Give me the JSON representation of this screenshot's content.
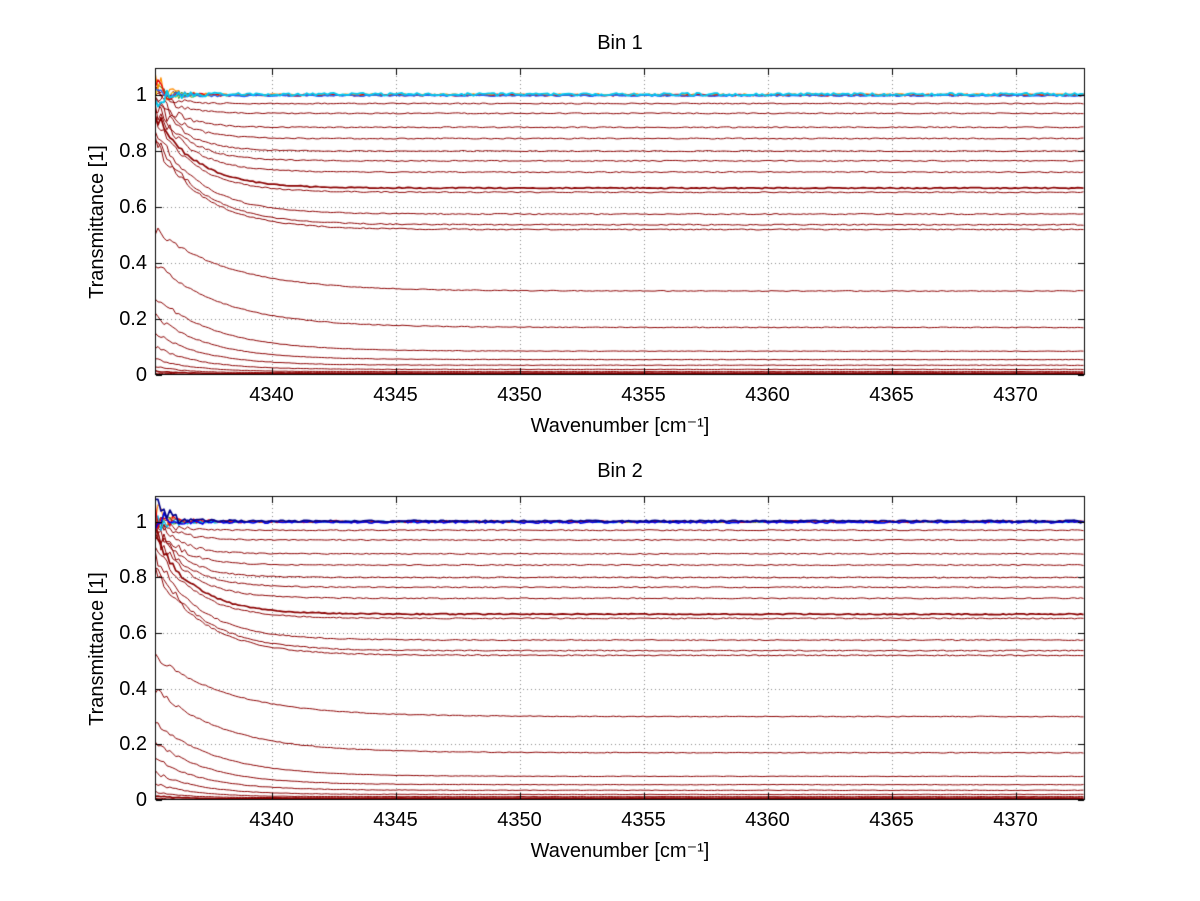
{
  "page": {
    "background": "#ffffff"
  },
  "chart_data": [
    {
      "type": "line",
      "title": "Bin 1",
      "xlabel": "Wavenumber [cm⁻¹]",
      "ylabel": "Transmittance [1]",
      "xlim": [
        4335.3,
        4372.8
      ],
      "ylim": [
        0,
        1.097
      ],
      "xticks": [
        4340,
        4345,
        4350,
        4355,
        4360,
        4365,
        4370
      ],
      "yticks": [
        0,
        0.2,
        0.4,
        0.6,
        0.8,
        1
      ],
      "grid": true,
      "grid_style": "dotted",
      "grid_color": "#888888",
      "axis_color": "#000000",
      "series_model": "y(x) = asym + (start - asym) * exp(-(x - xmin)/tau) + uniform_noise(noise_left * exp(-(x - xmin)/0.7) + noise_base); many transmittance traces decaying from a noisy left edge to flat asymptotes",
      "series": [
        {
          "color": "#8b0000",
          "start": 1.02,
          "asym": 1.0,
          "tau": 0.5,
          "noise_left": 0.02,
          "noise_base": 0.0025,
          "lw": 1,
          "seed": 11
        },
        {
          "color": "#8b0000",
          "start": 1.0,
          "asym": 0.97,
          "tau": 0.8,
          "noise_left": 0.03,
          "noise_base": 0.002,
          "lw": 1,
          "seed": 12
        },
        {
          "color": "#8b0000",
          "start": 1.01,
          "asym": 0.935,
          "tau": 0.9,
          "noise_left": 0.035,
          "noise_base": 0.002,
          "lw": 1,
          "seed": 13
        },
        {
          "color": "#8b0000",
          "start": 1.0,
          "asym": 0.885,
          "tau": 1.0,
          "noise_left": 0.04,
          "noise_base": 0.002,
          "lw": 1,
          "seed": 14
        },
        {
          "color": "#8b0000",
          "start": 0.99,
          "asym": 0.845,
          "tau": 1.1,
          "noise_left": 0.04,
          "noise_base": 0.002,
          "lw": 1,
          "seed": 15
        },
        {
          "color": "#8b0000",
          "start": 0.98,
          "asym": 0.8,
          "tau": 1.2,
          "noise_left": 0.04,
          "noise_base": 0.002,
          "lw": 1,
          "seed": 16
        },
        {
          "color": "#8b0000",
          "start": 0.97,
          "asym": 0.765,
          "tau": 1.3,
          "noise_left": 0.035,
          "noise_base": 0.002,
          "lw": 1,
          "seed": 17
        },
        {
          "color": "#8b0000",
          "start": 0.96,
          "asym": 0.725,
          "tau": 1.4,
          "noise_left": 0.035,
          "noise_base": 0.002,
          "lw": 1,
          "seed": 18
        },
        {
          "color": "#8b0000",
          "start": 0.94,
          "asym": 0.668,
          "tau": 1.6,
          "noise_left": 0.03,
          "noise_base": 0.002,
          "lw": 1.7,
          "seed": 19
        },
        {
          "color": "#8b0000",
          "start": 0.92,
          "asym": 0.653,
          "tau": 1.6,
          "noise_left": 0.03,
          "noise_base": 0.002,
          "lw": 1,
          "seed": 20
        },
        {
          "color": "#8b0000",
          "start": 0.88,
          "asym": 0.575,
          "tau": 1.8,
          "noise_left": 0.03,
          "noise_base": 0.002,
          "lw": 1,
          "seed": 21
        },
        {
          "color": "#8b0000",
          "start": 0.85,
          "asym": 0.537,
          "tau": 1.9,
          "noise_left": 0.025,
          "noise_base": 0.002,
          "lw": 1,
          "seed": 22
        },
        {
          "color": "#8b0000",
          "start": 0.83,
          "asym": 0.52,
          "tau": 2.0,
          "noise_left": 0.025,
          "noise_base": 0.002,
          "lw": 1,
          "seed": 23
        },
        {
          "color": "#8b0000",
          "start": 0.52,
          "asym": 0.3,
          "tau": 3.0,
          "noise_left": 0.02,
          "noise_base": 0.0015,
          "lw": 1,
          "seed": 24
        },
        {
          "color": "#8b0000",
          "start": 0.4,
          "asym": 0.17,
          "tau": 2.8,
          "noise_left": 0.018,
          "noise_base": 0.0015,
          "lw": 1,
          "seed": 25
        },
        {
          "color": "#8b0000",
          "start": 0.28,
          "asym": 0.085,
          "tau": 2.5,
          "noise_left": 0.015,
          "noise_base": 0.001,
          "lw": 1,
          "seed": 26
        },
        {
          "color": "#8b0000",
          "start": 0.21,
          "asym": 0.055,
          "tau": 2.2,
          "noise_left": 0.012,
          "noise_base": 0.001,
          "lw": 1,
          "seed": 27
        },
        {
          "color": "#8b0000",
          "start": 0.15,
          "asym": 0.035,
          "tau": 2.0,
          "noise_left": 0.01,
          "noise_base": 0.001,
          "lw": 1,
          "seed": 28
        },
        {
          "color": "#8b0000",
          "start": 0.1,
          "asym": 0.02,
          "tau": 1.8,
          "noise_left": 0.008,
          "noise_base": 0.0008,
          "lw": 1,
          "seed": 29
        },
        {
          "color": "#8b0000",
          "start": 0.06,
          "asym": 0.012,
          "tau": 1.5,
          "noise_left": 0.006,
          "noise_base": 0.0006,
          "lw": 1,
          "seed": 30
        },
        {
          "color": "#8b0000",
          "start": 0.03,
          "asym": 0.008,
          "tau": 1.2,
          "noise_left": 0.004,
          "noise_base": 0.0005,
          "lw": 1,
          "seed": 31
        },
        {
          "color": "#8b0000",
          "start": 0.015,
          "asym": 0.005,
          "tau": 1.0,
          "noise_left": 0.003,
          "noise_base": 0.0004,
          "lw": 1.6,
          "seed": 32
        },
        {
          "color": "#8b0000",
          "start": 0.006,
          "asym": 0.003,
          "tau": 0.8,
          "noise_left": 0.002,
          "noise_base": 0.0003,
          "lw": 1,
          "seed": 33
        },
        {
          "color": "#ffd400",
          "start": 1.03,
          "asym": 1.0,
          "tau": 0.3,
          "noise_left": 0.05,
          "noise_base": 0.002,
          "lw": 1,
          "seed": 41
        },
        {
          "color": "#2ca02c",
          "start": 1.0,
          "asym": 1.0,
          "tau": 0.3,
          "noise_left": 0.045,
          "noise_base": 0.002,
          "lw": 1,
          "seed": 42
        },
        {
          "color": "#ff8c00",
          "start": 1.04,
          "asym": 1.002,
          "tau": 0.35,
          "noise_left": 0.055,
          "noise_base": 0.003,
          "lw": 1.2,
          "seed": 43
        },
        {
          "color": "#e8000b",
          "start": 1.03,
          "asym": 1.0,
          "tau": 0.4,
          "noise_left": 0.05,
          "noise_base": 0.0035,
          "lw": 1.3,
          "seed": 44
        },
        {
          "color": "#1e64ff",
          "start": 1.0,
          "asym": 0.998,
          "tau": 0.4,
          "noise_left": 0.03,
          "noise_base": 0.003,
          "lw": 1.2,
          "seed": 45
        },
        {
          "color": "#00c8f0",
          "start": 1.0,
          "asym": 1.003,
          "tau": 0.5,
          "noise_left": 0.045,
          "noise_base": 0.005,
          "lw": 1.8,
          "seed": 46
        }
      ]
    },
    {
      "type": "line",
      "title": "Bin 2",
      "xlabel": "Wavenumber [cm⁻¹]",
      "ylabel": "Transmittance [1]",
      "xlim": [
        4335.3,
        4372.8
      ],
      "ylim": [
        0,
        1.093
      ],
      "xticks": [
        4340,
        4345,
        4350,
        4355,
        4360,
        4365,
        4370
      ],
      "yticks": [
        0,
        0.2,
        0.4,
        0.6,
        0.8,
        1
      ],
      "grid": true,
      "grid_style": "dotted",
      "grid_color": "#888888",
      "axis_color": "#000000",
      "series_model": "y(x) = asym + (start - asym) * exp(-(x - xmin)/tau) + uniform_noise(noise_left * exp(-(x - xmin)/0.7) + noise_base); many transmittance traces decaying from a noisy left edge to flat asymptotes",
      "series": [
        {
          "color": "#8b0000",
          "start": 1.02,
          "asym": 1.0,
          "tau": 0.5,
          "noise_left": 0.02,
          "noise_base": 0.0025,
          "lw": 1,
          "seed": 111
        },
        {
          "color": "#8b0000",
          "start": 1.0,
          "asym": 0.97,
          "tau": 0.8,
          "noise_left": 0.03,
          "noise_base": 0.002,
          "lw": 1,
          "seed": 112
        },
        {
          "color": "#8b0000",
          "start": 1.01,
          "asym": 0.935,
          "tau": 0.9,
          "noise_left": 0.035,
          "noise_base": 0.002,
          "lw": 1,
          "seed": 113
        },
        {
          "color": "#8b0000",
          "start": 1.0,
          "asym": 0.885,
          "tau": 1.0,
          "noise_left": 0.04,
          "noise_base": 0.002,
          "lw": 1,
          "seed": 114
        },
        {
          "color": "#8b0000",
          "start": 0.99,
          "asym": 0.845,
          "tau": 1.1,
          "noise_left": 0.04,
          "noise_base": 0.002,
          "lw": 1,
          "seed": 115
        },
        {
          "color": "#8b0000",
          "start": 0.98,
          "asym": 0.8,
          "tau": 1.2,
          "noise_left": 0.04,
          "noise_base": 0.002,
          "lw": 1,
          "seed": 116
        },
        {
          "color": "#8b0000",
          "start": 0.97,
          "asym": 0.765,
          "tau": 1.3,
          "noise_left": 0.035,
          "noise_base": 0.002,
          "lw": 1,
          "seed": 117
        },
        {
          "color": "#8b0000",
          "start": 0.96,
          "asym": 0.725,
          "tau": 1.4,
          "noise_left": 0.035,
          "noise_base": 0.002,
          "lw": 1,
          "seed": 118
        },
        {
          "color": "#8b0000",
          "start": 0.94,
          "asym": 0.668,
          "tau": 1.6,
          "noise_left": 0.03,
          "noise_base": 0.002,
          "lw": 1.7,
          "seed": 119
        },
        {
          "color": "#8b0000",
          "start": 0.92,
          "asym": 0.653,
          "tau": 1.6,
          "noise_left": 0.03,
          "noise_base": 0.002,
          "lw": 1,
          "seed": 120
        },
        {
          "color": "#8b0000",
          "start": 0.88,
          "asym": 0.575,
          "tau": 1.8,
          "noise_left": 0.03,
          "noise_base": 0.002,
          "lw": 1,
          "seed": 121
        },
        {
          "color": "#8b0000",
          "start": 0.85,
          "asym": 0.537,
          "tau": 1.9,
          "noise_left": 0.025,
          "noise_base": 0.002,
          "lw": 1,
          "seed": 122
        },
        {
          "color": "#8b0000",
          "start": 0.83,
          "asym": 0.52,
          "tau": 2.0,
          "noise_left": 0.025,
          "noise_base": 0.002,
          "lw": 1,
          "seed": 123
        },
        {
          "color": "#8b0000",
          "start": 0.52,
          "asym": 0.3,
          "tau": 3.0,
          "noise_left": 0.02,
          "noise_base": 0.0015,
          "lw": 1,
          "seed": 124
        },
        {
          "color": "#8b0000",
          "start": 0.4,
          "asym": 0.17,
          "tau": 2.8,
          "noise_left": 0.018,
          "noise_base": 0.0015,
          "lw": 1,
          "seed": 125
        },
        {
          "color": "#8b0000",
          "start": 0.28,
          "asym": 0.085,
          "tau": 2.5,
          "noise_left": 0.015,
          "noise_base": 0.001,
          "lw": 1,
          "seed": 126
        },
        {
          "color": "#8b0000",
          "start": 0.21,
          "asym": 0.055,
          "tau": 2.2,
          "noise_left": 0.012,
          "noise_base": 0.001,
          "lw": 1,
          "seed": 127
        },
        {
          "color": "#8b0000",
          "start": 0.15,
          "asym": 0.035,
          "tau": 2.0,
          "noise_left": 0.01,
          "noise_base": 0.001,
          "lw": 1,
          "seed": 128
        },
        {
          "color": "#8b0000",
          "start": 0.1,
          "asym": 0.02,
          "tau": 1.8,
          "noise_left": 0.008,
          "noise_base": 0.0008,
          "lw": 1,
          "seed": 129
        },
        {
          "color": "#8b0000",
          "start": 0.06,
          "asym": 0.012,
          "tau": 1.5,
          "noise_left": 0.006,
          "noise_base": 0.0006,
          "lw": 1,
          "seed": 130
        },
        {
          "color": "#8b0000",
          "start": 0.03,
          "asym": 0.008,
          "tau": 1.2,
          "noise_left": 0.004,
          "noise_base": 0.0005,
          "lw": 1,
          "seed": 131
        },
        {
          "color": "#8b0000",
          "start": 0.015,
          "asym": 0.005,
          "tau": 1.0,
          "noise_left": 0.003,
          "noise_base": 0.0004,
          "lw": 1.6,
          "seed": 132
        },
        {
          "color": "#8b0000",
          "start": 0.006,
          "asym": 0.003,
          "tau": 0.8,
          "noise_left": 0.002,
          "noise_base": 0.0003,
          "lw": 1,
          "seed": 133
        },
        {
          "color": "#ff8c00",
          "start": 1.04,
          "asym": 1.0,
          "tau": 0.3,
          "noise_left": 0.05,
          "noise_base": 0.002,
          "lw": 1,
          "seed": 151
        },
        {
          "color": "#228b22",
          "start": 1.0,
          "asym": 1.0,
          "tau": 0.3,
          "noise_left": 0.04,
          "noise_base": 0.002,
          "lw": 1,
          "seed": 152
        },
        {
          "color": "#00bfff",
          "start": 1.0,
          "asym": 1.0,
          "tau": 0.4,
          "noise_left": 0.04,
          "noise_base": 0.003,
          "lw": 1.2,
          "seed": 153
        },
        {
          "color": "#e8000b",
          "start": 1.03,
          "asym": 1.001,
          "tau": 0.4,
          "noise_left": 0.05,
          "noise_base": 0.004,
          "lw": 1.3,
          "seed": 154
        },
        {
          "color": "#0000ee",
          "start": 1.0,
          "asym": 0.999,
          "tau": 0.5,
          "noise_left": 0.05,
          "noise_base": 0.004,
          "lw": 1.5,
          "seed": 155
        },
        {
          "color": "#00008b",
          "start": 1.05,
          "asym": 1.003,
          "tau": 0.5,
          "noise_left": 0.06,
          "noise_base": 0.003,
          "lw": 1.7,
          "seed": 156
        }
      ]
    }
  ]
}
